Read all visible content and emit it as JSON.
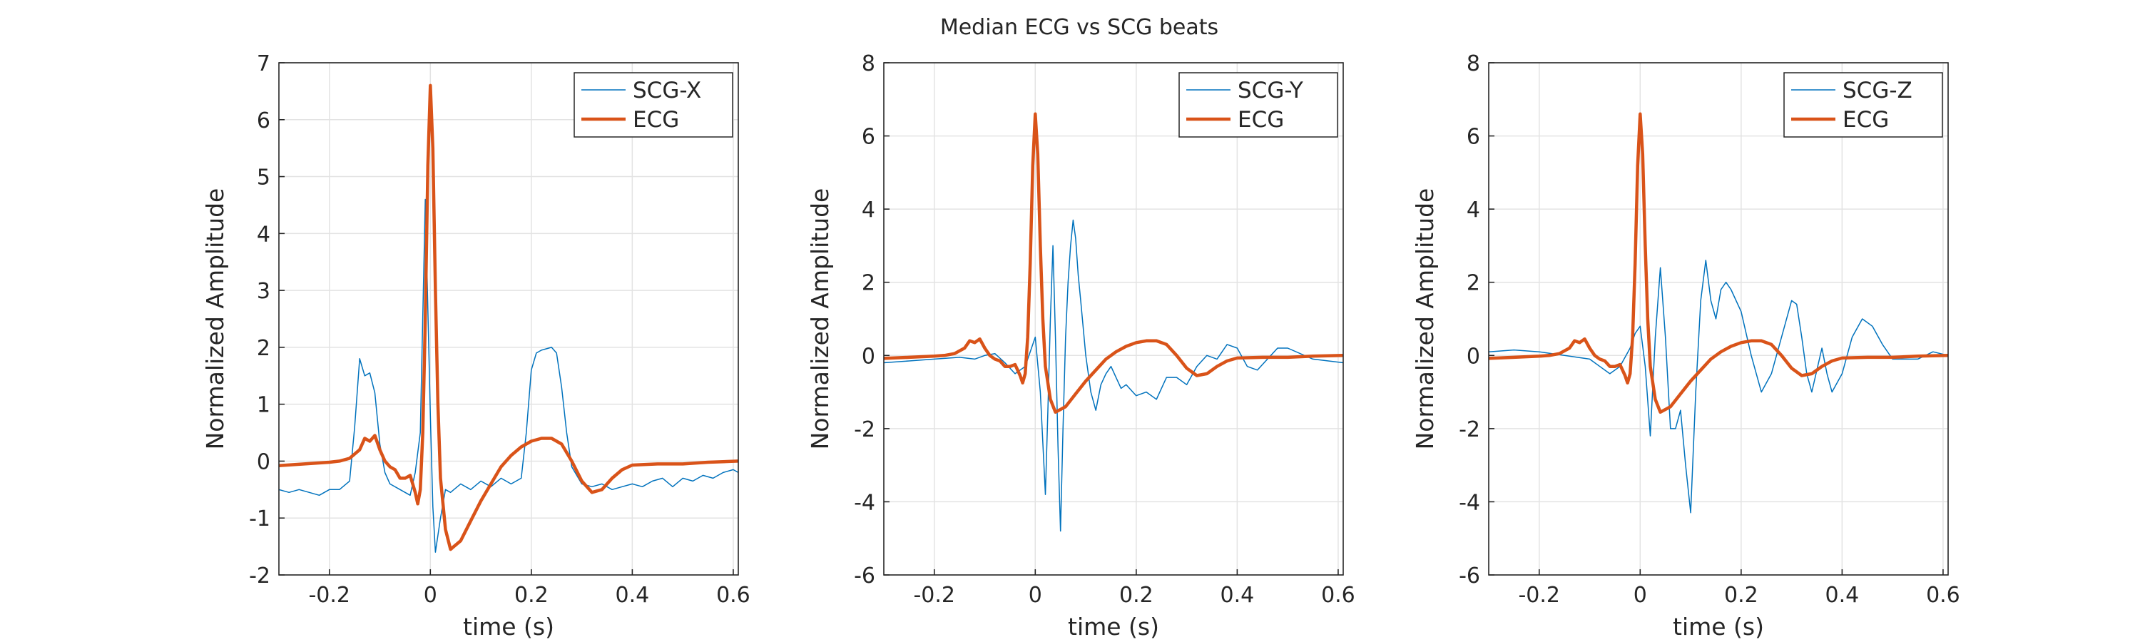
{
  "figure": {
    "title": "Median ECG vs SCG beats"
  },
  "colors": {
    "scg": "#0072BD",
    "ecg": "#D95319"
  },
  "chart_data": [
    {
      "type": "line",
      "xlabel": "time (s)",
      "ylabel": "Normalized Amplitude",
      "xlim": [
        -0.3,
        0.61
      ],
      "ylim": [
        -2,
        7
      ],
      "xticks": [
        -0.2,
        0,
        0.2,
        0.4,
        0.6
      ],
      "yticks": [
        -2,
        -1,
        0,
        1,
        2,
        3,
        4,
        5,
        6,
        7
      ],
      "xtick_labels": [
        "-0.2",
        "0",
        "0.2",
        "0.4",
        "0.6"
      ],
      "ytick_labels": [
        "-2",
        "-1",
        "0",
        "1",
        "2",
        "3",
        "4",
        "5",
        "6",
        "7"
      ],
      "grid": true,
      "legend": "top-right",
      "series": [
        {
          "name": "SCG-X",
          "color": "#0072BD",
          "x": [
            -0.3,
            -0.28,
            -0.26,
            -0.24,
            -0.22,
            -0.2,
            -0.18,
            -0.16,
            -0.15,
            -0.14,
            -0.13,
            -0.12,
            -0.11,
            -0.1,
            -0.09,
            -0.08,
            -0.06,
            -0.04,
            -0.03,
            -0.02,
            -0.01,
            0,
            0.005,
            0.01,
            0.02,
            0.03,
            0.04,
            0.06,
            0.08,
            0.1,
            0.12,
            0.14,
            0.16,
            0.18,
            0.19,
            0.2,
            0.21,
            0.22,
            0.24,
            0.25,
            0.26,
            0.27,
            0.28,
            0.3,
            0.32,
            0.34,
            0.36,
            0.38,
            0.4,
            0.42,
            0.44,
            0.46,
            0.48,
            0.5,
            0.52,
            0.54,
            0.56,
            0.58,
            0.6,
            0.61
          ],
          "y": [
            -0.5,
            -0.55,
            -0.5,
            -0.55,
            -0.6,
            -0.5,
            -0.5,
            -0.35,
            0.6,
            1.8,
            1.5,
            1.55,
            1.2,
            0.3,
            -0.2,
            -0.4,
            -0.5,
            -0.6,
            -0.2,
            0.5,
            4.6,
            0.8,
            -0.8,
            -1.6,
            -1.0,
            -0.5,
            -0.55,
            -0.4,
            -0.5,
            -0.35,
            -0.45,
            -0.3,
            -0.4,
            -0.3,
            0.5,
            1.6,
            1.9,
            1.95,
            2.0,
            1.9,
            1.3,
            0.5,
            -0.1,
            -0.4,
            -0.45,
            -0.4,
            -0.5,
            -0.45,
            -0.4,
            -0.45,
            -0.35,
            -0.3,
            -0.45,
            -0.3,
            -0.35,
            -0.25,
            -0.3,
            -0.2,
            -0.15,
            -0.2
          ]
        },
        {
          "name": "ECG",
          "color": "#D95319",
          "x": [
            -0.3,
            -0.25,
            -0.2,
            -0.18,
            -0.16,
            -0.14,
            -0.13,
            -0.12,
            -0.11,
            -0.1,
            -0.09,
            -0.08,
            -0.07,
            -0.06,
            -0.05,
            -0.04,
            -0.03,
            -0.025,
            -0.02,
            -0.015,
            -0.01,
            -0.005,
            0,
            0.005,
            0.01,
            0.015,
            0.02,
            0.03,
            0.04,
            0.06,
            0.08,
            0.1,
            0.12,
            0.14,
            0.16,
            0.18,
            0.2,
            0.22,
            0.24,
            0.26,
            0.28,
            0.3,
            0.32,
            0.34,
            0.36,
            0.38,
            0.4,
            0.45,
            0.5,
            0.55,
            0.61
          ],
          "y": [
            -0.08,
            -0.05,
            -0.02,
            0,
            0.05,
            0.2,
            0.4,
            0.35,
            0.45,
            0.2,
            0,
            -0.1,
            -0.15,
            -0.3,
            -0.3,
            -0.25,
            -0.55,
            -0.75,
            -0.5,
            0.5,
            2.5,
            5.2,
            6.6,
            5.5,
            3.0,
            1.0,
            -0.3,
            -1.2,
            -1.55,
            -1.4,
            -1.05,
            -0.7,
            -0.4,
            -0.1,
            0.1,
            0.25,
            0.35,
            0.4,
            0.4,
            0.3,
            0.0,
            -0.35,
            -0.55,
            -0.5,
            -0.3,
            -0.15,
            -0.07,
            -0.05,
            -0.05,
            -0.02,
            0
          ]
        }
      ]
    },
    {
      "type": "line",
      "xlabel": "time (s)",
      "ylabel": "Normalized Amplitude",
      "xlim": [
        -0.3,
        0.61
      ],
      "ylim": [
        -6,
        8
      ],
      "xticks": [
        -0.2,
        0,
        0.2,
        0.4,
        0.6
      ],
      "yticks": [
        -6,
        -4,
        -2,
        0,
        2,
        4,
        6,
        8
      ],
      "xtick_labels": [
        "-0.2",
        "0",
        "0.2",
        "0.4",
        "0.6"
      ],
      "ytick_labels": [
        "-6",
        "-4",
        "-2",
        "0",
        "2",
        "4",
        "6",
        "8"
      ],
      "grid": true,
      "legend": "top-right",
      "series": [
        {
          "name": "SCG-Y",
          "color": "#0072BD",
          "x": [
            -0.3,
            -0.25,
            -0.2,
            -0.15,
            -0.12,
            -0.1,
            -0.08,
            -0.06,
            -0.04,
            -0.02,
            0,
            0.01,
            0.02,
            0.025,
            0.03,
            0.035,
            0.04,
            0.045,
            0.05,
            0.055,
            0.06,
            0.065,
            0.07,
            0.075,
            0.08,
            0.085,
            0.09,
            0.1,
            0.11,
            0.12,
            0.13,
            0.14,
            0.15,
            0.16,
            0.17,
            0.18,
            0.2,
            0.22,
            0.24,
            0.26,
            0.28,
            0.3,
            0.32,
            0.34,
            0.36,
            0.38,
            0.4,
            0.42,
            0.44,
            0.46,
            0.48,
            0.5,
            0.55,
            0.61
          ],
          "y": [
            -0.2,
            -0.15,
            -0.1,
            -0.05,
            -0.1,
            0,
            0.05,
            -0.2,
            -0.5,
            -0.3,
            0.5,
            -1.0,
            -3.8,
            -1.5,
            1.0,
            3.0,
            0.5,
            -2.5,
            -4.8,
            -2.0,
            0.5,
            2.0,
            3.0,
            3.7,
            3.2,
            2.2,
            1.5,
            0.0,
            -1.0,
            -1.5,
            -0.8,
            -0.5,
            -0.3,
            -0.6,
            -0.9,
            -0.8,
            -1.1,
            -1.0,
            -1.2,
            -0.6,
            -0.6,
            -0.8,
            -0.3,
            0.0,
            -0.1,
            0.3,
            0.2,
            -0.3,
            -0.4,
            -0.1,
            0.2,
            0.2,
            -0.1,
            -0.2
          ]
        },
        {
          "name": "ECG",
          "color": "#D95319",
          "x": [
            -0.3,
            -0.25,
            -0.2,
            -0.18,
            -0.16,
            -0.14,
            -0.13,
            -0.12,
            -0.11,
            -0.1,
            -0.09,
            -0.08,
            -0.07,
            -0.06,
            -0.05,
            -0.04,
            -0.03,
            -0.025,
            -0.02,
            -0.015,
            -0.01,
            -0.005,
            0,
            0.005,
            0.01,
            0.015,
            0.02,
            0.03,
            0.04,
            0.06,
            0.08,
            0.1,
            0.12,
            0.14,
            0.16,
            0.18,
            0.2,
            0.22,
            0.24,
            0.26,
            0.28,
            0.3,
            0.32,
            0.34,
            0.36,
            0.38,
            0.4,
            0.45,
            0.5,
            0.55,
            0.61
          ],
          "y": [
            -0.08,
            -0.05,
            -0.02,
            0,
            0.05,
            0.2,
            0.4,
            0.35,
            0.45,
            0.2,
            0,
            -0.1,
            -0.15,
            -0.3,
            -0.3,
            -0.25,
            -0.55,
            -0.75,
            -0.5,
            0.5,
            2.5,
            5.2,
            6.6,
            5.5,
            3.0,
            1.0,
            -0.3,
            -1.2,
            -1.55,
            -1.4,
            -1.05,
            -0.7,
            -0.4,
            -0.1,
            0.1,
            0.25,
            0.35,
            0.4,
            0.4,
            0.3,
            0.0,
            -0.35,
            -0.55,
            -0.5,
            -0.3,
            -0.15,
            -0.07,
            -0.05,
            -0.05,
            -0.02,
            0
          ]
        }
      ]
    },
    {
      "type": "line",
      "xlabel": "time (s)",
      "ylabel": "Normalized Amplitude",
      "xlim": [
        -0.3,
        0.61
      ],
      "ylim": [
        -6,
        8
      ],
      "xticks": [
        -0.2,
        0,
        0.2,
        0.4,
        0.6
      ],
      "yticks": [
        -6,
        -4,
        -2,
        0,
        2,
        4,
        6,
        8
      ],
      "xtick_labels": [
        "-0.2",
        "0",
        "0.2",
        "0.4",
        "0.6"
      ],
      "ytick_labels": [
        "-6",
        "-4",
        "-2",
        "0",
        "2",
        "4",
        "6",
        "8"
      ],
      "grid": true,
      "legend": "top-right",
      "series": [
        {
          "name": "SCG-Z",
          "color": "#0072BD",
          "x": [
            -0.3,
            -0.25,
            -0.2,
            -0.15,
            -0.1,
            -0.08,
            -0.06,
            -0.04,
            -0.02,
            -0.01,
            0,
            0.01,
            0.02,
            0.03,
            0.04,
            0.05,
            0.06,
            0.07,
            0.08,
            0.09,
            0.1,
            0.11,
            0.12,
            0.13,
            0.14,
            0.15,
            0.16,
            0.17,
            0.18,
            0.2,
            0.22,
            0.24,
            0.26,
            0.28,
            0.3,
            0.31,
            0.32,
            0.33,
            0.34,
            0.36,
            0.37,
            0.38,
            0.4,
            0.42,
            0.44,
            0.46,
            0.48,
            0.5,
            0.55,
            0.58,
            0.61
          ],
          "y": [
            0.1,
            0.15,
            0.1,
            0.0,
            -0.1,
            -0.3,
            -0.5,
            -0.3,
            0.2,
            0.6,
            0.8,
            -0.3,
            -2.2,
            0.5,
            2.4,
            0.5,
            -2.0,
            -2.0,
            -1.5,
            -3.0,
            -4.3,
            -1.0,
            1.5,
            2.6,
            1.5,
            1.0,
            1.8,
            2.0,
            1.8,
            1.2,
            0.0,
            -1.0,
            -0.5,
            0.5,
            1.5,
            1.4,
            0.5,
            -0.5,
            -1.0,
            0.2,
            -0.5,
            -1.0,
            -0.5,
            0.5,
            1.0,
            0.8,
            0.3,
            -0.1,
            -0.1,
            0.1,
            0.0
          ]
        },
        {
          "name": "ECG",
          "color": "#D95319",
          "x": [
            -0.3,
            -0.25,
            -0.2,
            -0.18,
            -0.16,
            -0.14,
            -0.13,
            -0.12,
            -0.11,
            -0.1,
            -0.09,
            -0.08,
            -0.07,
            -0.06,
            -0.05,
            -0.04,
            -0.03,
            -0.025,
            -0.02,
            -0.015,
            -0.01,
            -0.005,
            0,
            0.005,
            0.01,
            0.015,
            0.02,
            0.03,
            0.04,
            0.06,
            0.08,
            0.1,
            0.12,
            0.14,
            0.16,
            0.18,
            0.2,
            0.22,
            0.24,
            0.26,
            0.28,
            0.3,
            0.32,
            0.34,
            0.36,
            0.38,
            0.4,
            0.45,
            0.5,
            0.55,
            0.61
          ],
          "y": [
            -0.08,
            -0.05,
            -0.02,
            0,
            0.05,
            0.2,
            0.4,
            0.35,
            0.45,
            0.2,
            0,
            -0.1,
            -0.15,
            -0.3,
            -0.3,
            -0.25,
            -0.55,
            -0.75,
            -0.5,
            0.5,
            2.5,
            5.2,
            6.6,
            5.5,
            3.0,
            1.0,
            -0.3,
            -1.2,
            -1.55,
            -1.4,
            -1.05,
            -0.7,
            -0.4,
            -0.1,
            0.1,
            0.25,
            0.35,
            0.4,
            0.4,
            0.3,
            0.0,
            -0.35,
            -0.55,
            -0.5,
            -0.3,
            -0.15,
            -0.07,
            -0.05,
            -0.05,
            -0.02,
            0
          ]
        }
      ]
    }
  ]
}
